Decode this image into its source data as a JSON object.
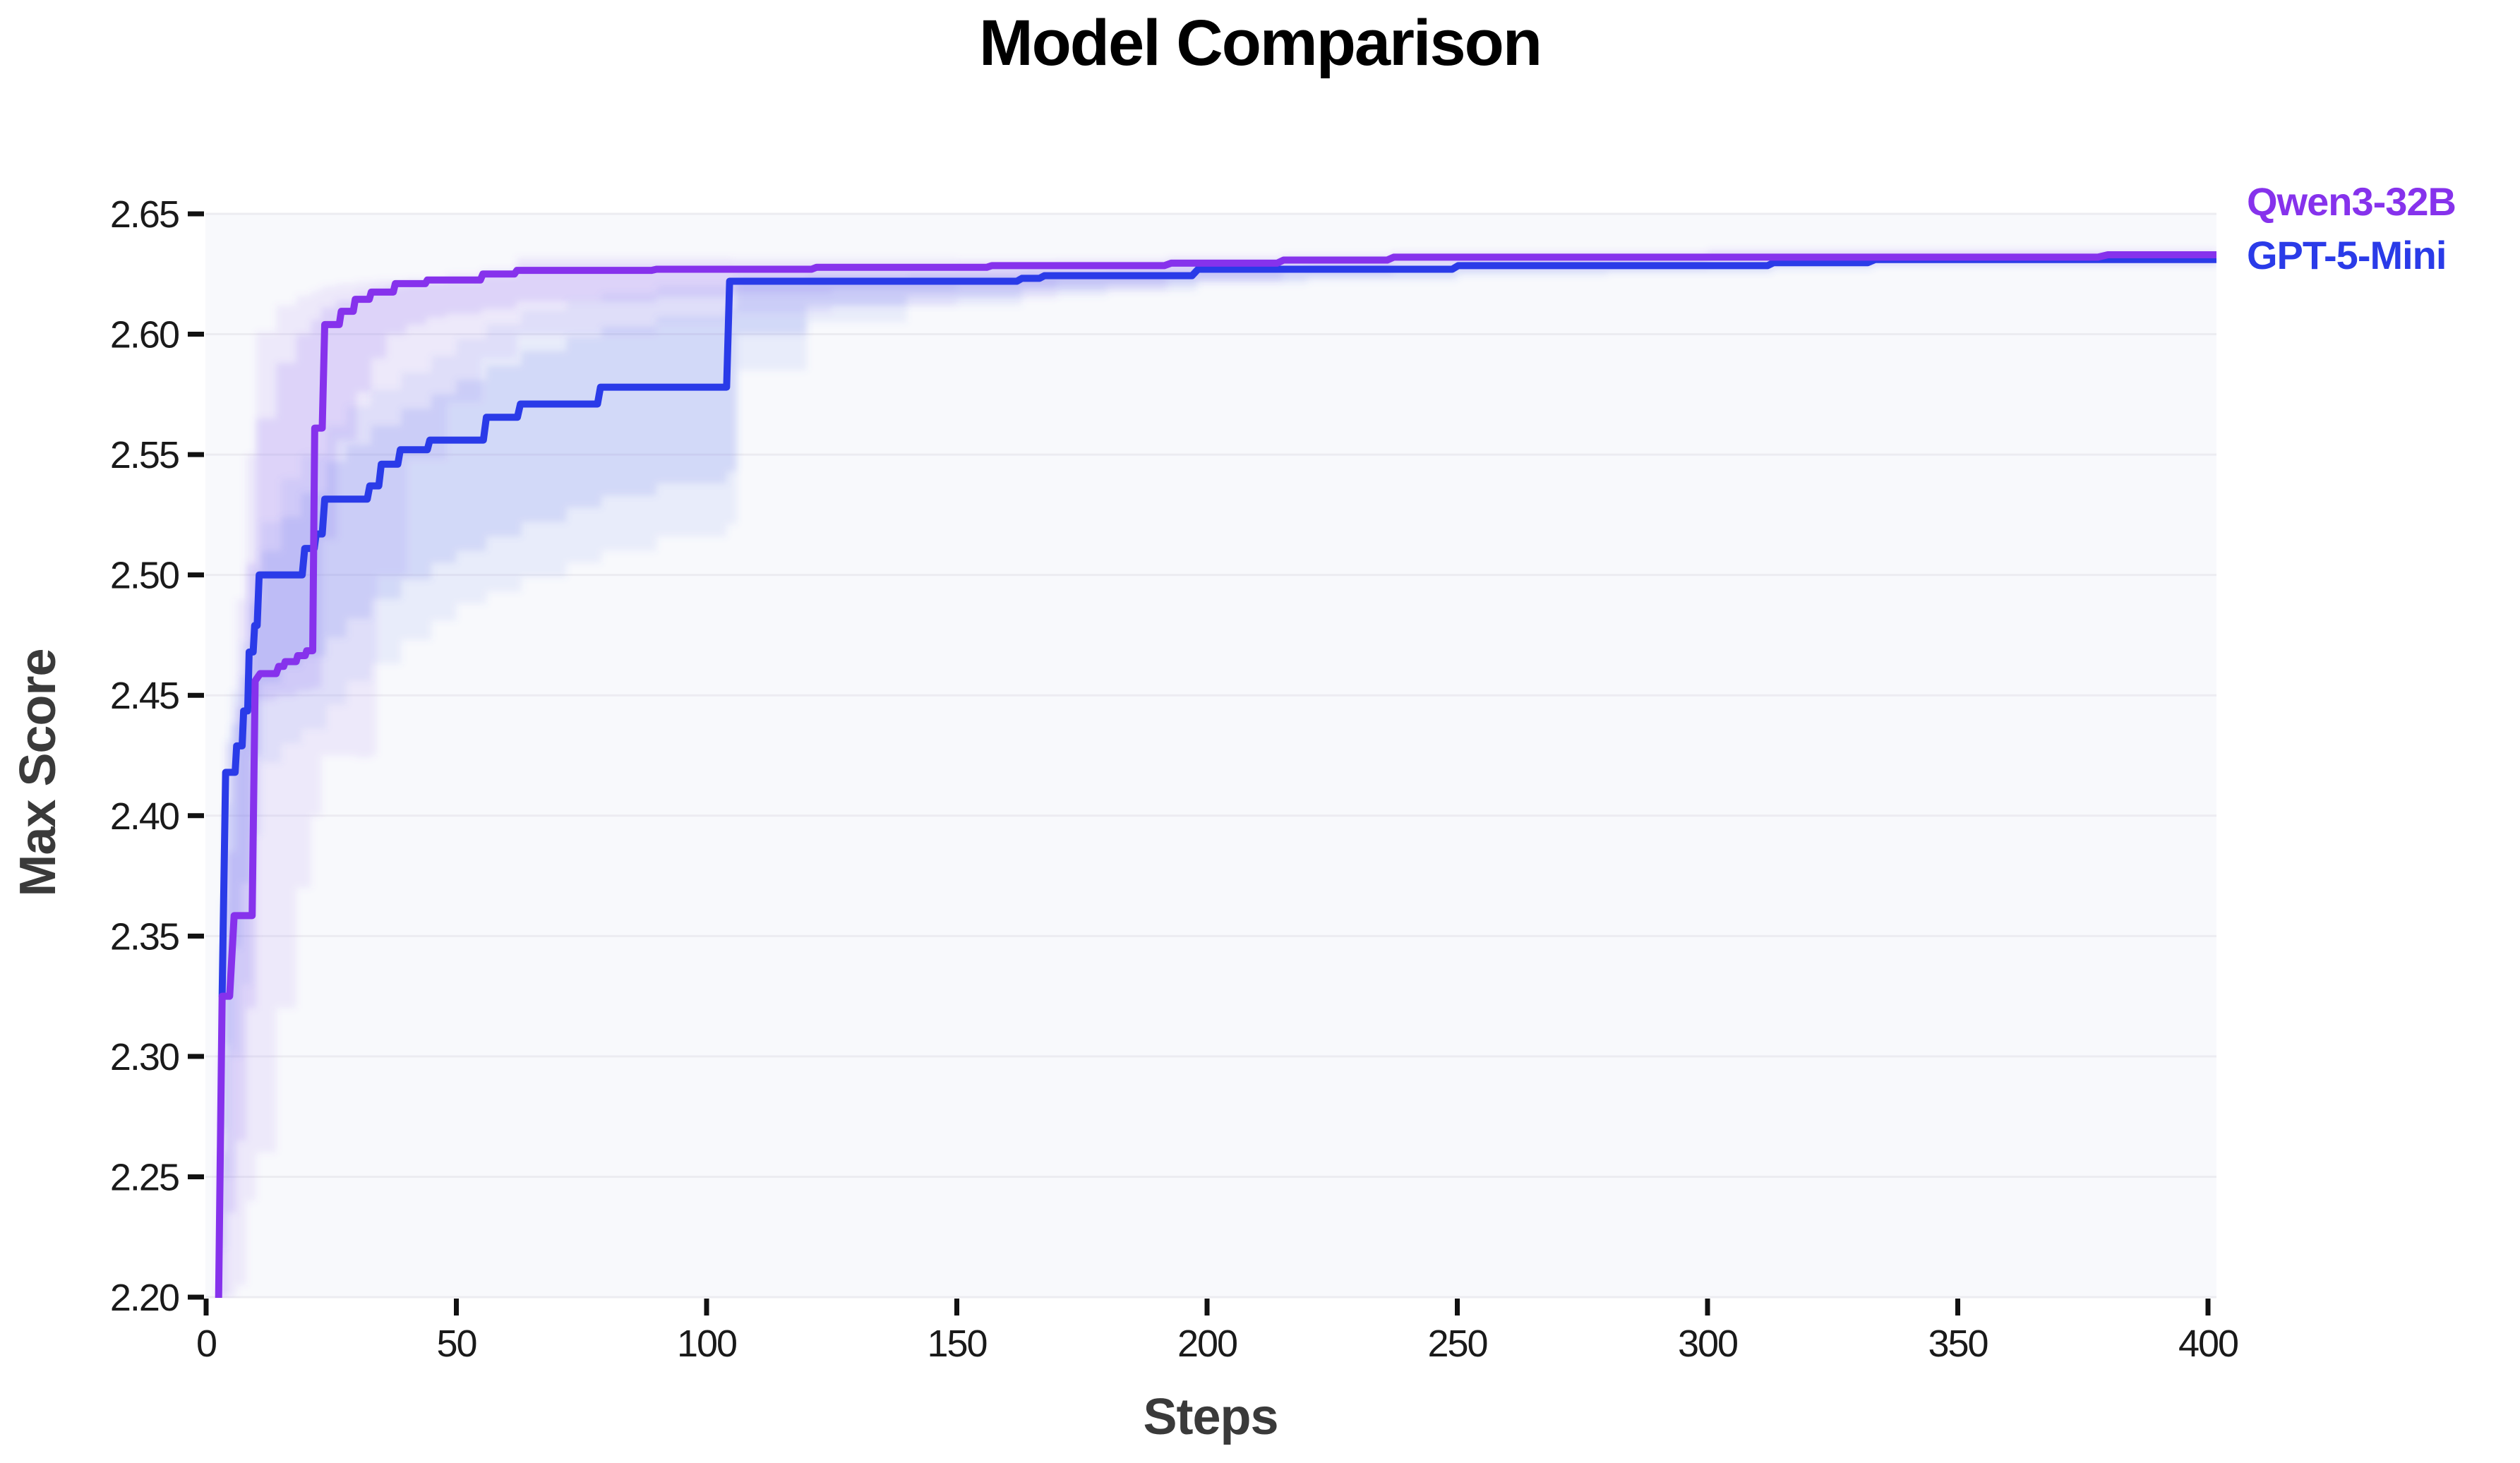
{
  "chart_data": {
    "type": "line",
    "title": "Model Comparison",
    "xlabel": "Steps",
    "ylabel": "Max Score",
    "xlim": [
      0,
      400
    ],
    "ylim": [
      2.2,
      2.65
    ],
    "xticks": [
      0,
      50,
      100,
      150,
      200,
      250,
      300,
      350,
      400
    ],
    "yticks": [
      2.2,
      2.25,
      2.3,
      2.35,
      2.4,
      2.45,
      2.5,
      2.55,
      2.6,
      2.65
    ],
    "grid": "horizontal",
    "legend_position": "right-of-plot-inline",
    "panel_bg": "#f8f9fc",
    "grid_color": "#ececf1",
    "tick_color": "#111111",
    "series": [
      {
        "name": "Qwen3-32B",
        "color": "#8632ec",
        "band_color": "#8a5cf0",
        "points": [
          [
            2.5,
            2.2
          ],
          [
            3.2,
            2.325
          ],
          [
            4.7,
            2.325
          ],
          [
            5.6,
            2.3585
          ],
          [
            9.2,
            2.3585
          ],
          [
            9.8,
            2.456
          ],
          [
            10.8,
            2.459
          ],
          [
            14.0,
            2.459
          ],
          [
            14.5,
            2.462
          ],
          [
            15.5,
            2.462
          ],
          [
            15.8,
            2.464
          ],
          [
            18.0,
            2.464
          ],
          [
            18.3,
            2.4665
          ],
          [
            19.8,
            2.4665
          ],
          [
            20.1,
            2.4685
          ],
          [
            21.3,
            2.4685
          ],
          [
            21.7,
            2.561
          ],
          [
            23.2,
            2.561
          ],
          [
            23.7,
            2.604
          ],
          [
            26.6,
            2.604
          ],
          [
            27.0,
            2.6095
          ],
          [
            29.4,
            2.6095
          ],
          [
            29.8,
            2.6145
          ],
          [
            32.6,
            2.6145
          ],
          [
            33.0,
            2.6175
          ],
          [
            37.4,
            2.6175
          ],
          [
            37.8,
            2.621
          ],
          [
            43.8,
            2.621
          ],
          [
            44.2,
            2.6225
          ],
          [
            54.8,
            2.6225
          ],
          [
            55.3,
            2.625
          ],
          [
            61.6,
            2.625
          ],
          [
            62.1,
            2.6265
          ],
          [
            89.0,
            2.6265
          ],
          [
            90.0,
            2.627
          ],
          [
            121.0,
            2.627
          ],
          [
            122.0,
            2.6278
          ],
          [
            156.0,
            2.6278
          ],
          [
            157.0,
            2.6285
          ],
          [
            191.5,
            2.6285
          ],
          [
            192.8,
            2.6295
          ],
          [
            214.0,
            2.6295
          ],
          [
            215.3,
            2.6308
          ],
          [
            236.0,
            2.6308
          ],
          [
            237.3,
            2.632
          ],
          [
            378.0,
            2.632
          ],
          [
            380.0,
            2.633
          ],
          [
            401.7,
            2.633
          ]
        ],
        "band_outer": [
          [
            2.5,
            2.2,
            2.3
          ],
          [
            4,
            2.2,
            2.43
          ],
          [
            6,
            2.205,
            2.49
          ],
          [
            8,
            2.24,
            2.55
          ],
          [
            10,
            2.26,
            2.601
          ],
          [
            14,
            2.32,
            2.612
          ],
          [
            18,
            2.37,
            2.616
          ],
          [
            21,
            2.4,
            2.618
          ],
          [
            23,
            2.425,
            2.62
          ],
          [
            26,
            2.425,
            2.621
          ],
          [
            30,
            2.424,
            2.622
          ],
          [
            33,
            2.425,
            2.622
          ],
          [
            34,
            2.5,
            2.6225
          ],
          [
            40,
            2.548,
            2.623
          ],
          [
            48,
            2.572,
            2.625
          ],
          [
            55,
            2.59,
            2.627
          ],
          [
            62,
            2.6,
            2.632
          ],
          [
            90,
            2.605,
            2.632
          ],
          [
            105,
            2.609,
            2.6315
          ],
          [
            125,
            2.612,
            2.6315
          ],
          [
            150,
            2.615,
            2.631
          ],
          [
            170,
            2.618,
            2.631
          ],
          [
            192,
            2.622,
            2.632
          ],
          [
            215,
            2.625,
            2.633
          ],
          [
            237,
            2.628,
            2.634
          ],
          [
            300,
            2.63,
            2.635
          ],
          [
            401.7,
            2.63,
            2.635
          ]
        ],
        "band_inner": [
          [
            2.5,
            2.2,
            2.26
          ],
          [
            4,
            2.235,
            2.385
          ],
          [
            6,
            2.265,
            2.445
          ],
          [
            8,
            2.32,
            2.505
          ],
          [
            10,
            2.448,
            2.565
          ],
          [
            14,
            2.45,
            2.588
          ],
          [
            18,
            2.452,
            2.6
          ],
          [
            21,
            2.453,
            2.606
          ],
          [
            23,
            2.515,
            2.611
          ],
          [
            26,
            2.556,
            2.614
          ],
          [
            30,
            2.576,
            2.617
          ],
          [
            33,
            2.59,
            2.619
          ],
          [
            36,
            2.6,
            2.62
          ],
          [
            40,
            2.604,
            2.621
          ],
          [
            44,
            2.607,
            2.6215
          ],
          [
            48,
            2.6085,
            2.6222
          ],
          [
            55,
            2.6105,
            2.6245
          ],
          [
            62,
            2.6135,
            2.6285
          ],
          [
            90,
            2.6155,
            2.6285
          ],
          [
            105,
            2.617,
            2.6282
          ],
          [
            125,
            2.6185,
            2.6282
          ],
          [
            150,
            2.62,
            2.6288
          ],
          [
            170,
            2.622,
            2.6295
          ],
          [
            192,
            2.6245,
            2.6305
          ],
          [
            215,
            2.6265,
            2.6318
          ],
          [
            237,
            2.629,
            2.633
          ],
          [
            300,
            2.6305,
            2.634
          ],
          [
            401.7,
            2.631,
            2.634
          ]
        ]
      },
      {
        "name": "GPT-5-Mini",
        "color": "#2a3be8",
        "band_color": "#6072ee",
        "points": [
          [
            3.2,
            2.325
          ],
          [
            3.9,
            2.418
          ],
          [
            5.8,
            2.418
          ],
          [
            6.1,
            2.429
          ],
          [
            7.2,
            2.429
          ],
          [
            7.5,
            2.4435
          ],
          [
            8.3,
            2.4435
          ],
          [
            8.6,
            2.468
          ],
          [
            9.4,
            2.468
          ],
          [
            9.7,
            2.479
          ],
          [
            10.2,
            2.479
          ],
          [
            10.6,
            2.5
          ],
          [
            19.2,
            2.5
          ],
          [
            19.7,
            2.511
          ],
          [
            21.6,
            2.511
          ],
          [
            22.0,
            2.517
          ],
          [
            23.2,
            2.517
          ],
          [
            23.7,
            2.5315
          ],
          [
            32.2,
            2.5315
          ],
          [
            32.7,
            2.537
          ],
          [
            34.5,
            2.537
          ],
          [
            35.0,
            2.546
          ],
          [
            38.3,
            2.546
          ],
          [
            38.8,
            2.552
          ],
          [
            44.2,
            2.552
          ],
          [
            44.7,
            2.556
          ],
          [
            55.4,
            2.556
          ],
          [
            56.0,
            2.5655
          ],
          [
            62.2,
            2.5655
          ],
          [
            62.8,
            2.571
          ],
          [
            78.2,
            2.571
          ],
          [
            78.8,
            2.578
          ],
          [
            104.0,
            2.578
          ],
          [
            104.6,
            2.622
          ],
          [
            162.0,
            2.622
          ],
          [
            163.0,
            2.6232
          ],
          [
            166.5,
            2.6232
          ],
          [
            167.5,
            2.6243
          ],
          [
            197.0,
            2.6243
          ],
          [
            198.2,
            2.627
          ],
          [
            249.0,
            2.627
          ],
          [
            250.2,
            2.6285
          ],
          [
            312.0,
            2.6285
          ],
          [
            313.2,
            2.6297
          ],
          [
            332.0,
            2.6297
          ],
          [
            333.5,
            2.631
          ],
          [
            401.7,
            2.631
          ]
        ],
        "band_outer": [
          [
            3.2,
            2.22,
            2.365
          ],
          [
            4,
            2.25,
            2.432
          ],
          [
            5,
            2.3,
            2.452
          ],
          [
            7,
            2.33,
            2.472
          ],
          [
            9,
            2.392,
            2.502
          ],
          [
            11,
            2.422,
            2.522
          ],
          [
            15,
            2.43,
            2.54
          ],
          [
            19,
            2.436,
            2.55
          ],
          [
            24,
            2.446,
            2.562
          ],
          [
            28,
            2.456,
            2.57
          ],
          [
            33,
            2.463,
            2.577
          ],
          [
            39,
            2.473,
            2.584
          ],
          [
            45,
            2.481,
            2.591
          ],
          [
            50,
            2.488,
            2.598
          ],
          [
            56,
            2.493,
            2.604
          ],
          [
            63,
            2.499,
            2.61
          ],
          [
            72,
            2.505,
            2.614
          ],
          [
            79,
            2.51,
            2.617
          ],
          [
            90,
            2.516,
            2.62
          ],
          [
            104,
            2.521,
            2.621
          ],
          [
            106,
            2.585,
            2.6235
          ],
          [
            120,
            2.605,
            2.6245
          ],
          [
            140,
            2.612,
            2.625
          ],
          [
            163,
            2.616,
            2.626
          ],
          [
            180,
            2.618,
            2.6263
          ],
          [
            198,
            2.621,
            2.6275
          ],
          [
            220,
            2.6225,
            2.6285
          ],
          [
            250,
            2.6245,
            2.6295
          ],
          [
            280,
            2.6255,
            2.6297
          ],
          [
            313,
            2.627,
            2.6305
          ],
          [
            333,
            2.6285,
            2.6315
          ],
          [
            401.7,
            2.629,
            2.6315
          ]
        ],
        "band_inner": [
          [
            3.2,
            2.27,
            2.345
          ],
          [
            4,
            2.305,
            2.405
          ],
          [
            5,
            2.345,
            2.438
          ],
          [
            7,
            2.372,
            2.458
          ],
          [
            9,
            2.425,
            2.488
          ],
          [
            11,
            2.455,
            2.51
          ],
          [
            15,
            2.462,
            2.524
          ],
          [
            19,
            2.466,
            2.534
          ],
          [
            24,
            2.474,
            2.547
          ],
          [
            28,
            2.482,
            2.554
          ],
          [
            33,
            2.49,
            2.562
          ],
          [
            39,
            2.498,
            2.569
          ],
          [
            45,
            2.505,
            2.575
          ],
          [
            50,
            2.51,
            2.581
          ],
          [
            56,
            2.516,
            2.587
          ],
          [
            63,
            2.522,
            2.593
          ],
          [
            72,
            2.528,
            2.599
          ],
          [
            79,
            2.533,
            2.603
          ],
          [
            90,
            2.538,
            2.607
          ],
          [
            104,
            2.543,
            2.61
          ],
          [
            106,
            2.6,
            2.6228
          ],
          [
            120,
            2.612,
            2.6235
          ],
          [
            140,
            2.616,
            2.624
          ],
          [
            163,
            2.619,
            2.6248
          ],
          [
            180,
            2.6205,
            2.6253
          ],
          [
            198,
            2.6228,
            2.6262
          ],
          [
            220,
            2.624,
            2.627
          ],
          [
            250,
            2.6258,
            2.628
          ],
          [
            280,
            2.6265,
            2.6285
          ],
          [
            313,
            2.628,
            2.6295
          ],
          [
            333,
            2.6295,
            2.6305
          ],
          [
            401.7,
            2.63,
            2.6305
          ]
        ]
      }
    ]
  }
}
